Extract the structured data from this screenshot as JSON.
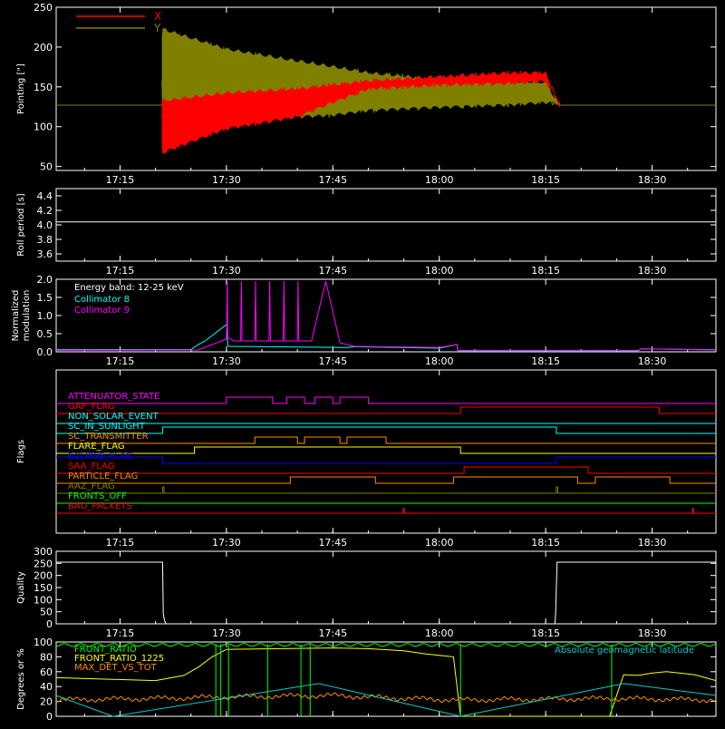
{
  "colors": {
    "background": "#000000",
    "axis": "#ffffff",
    "x_pointing": "#ff0000",
    "y_pointing": "#808000",
    "roll": "#ffffff",
    "collimator8": "#00ffff",
    "collimator9": "#ff00ff",
    "quality": "#ffffff",
    "geomag": "#00cccc",
    "front_ratio": "#00ff00",
    "front_ratio_1225": "#ffff00",
    "max_det": "#ff8c00"
  },
  "time_axis": {
    "ticks": [
      "17:15",
      "17:30",
      "17:45",
      "18:00",
      "18:15",
      "18:30"
    ],
    "tick_minutes": [
      1035,
      1050,
      1065,
      1080,
      1095,
      1110
    ],
    "range_minutes": [
      1026,
      1119
    ]
  },
  "chart_data": [
    {
      "id": "pointing",
      "type": "line",
      "ylabel": "Pointing [\"]",
      "ylim": [
        45,
        250
      ],
      "yticks": [
        50,
        100,
        150,
        200,
        250
      ],
      "series": [
        {
          "name": "X",
          "color": "#ff0000",
          "envelope": {
            "t": [
              1026,
              1040,
              1041,
              1050,
              1060,
              1065,
              1070,
              1080,
              1090,
              1095,
              1097,
              1119
            ],
            "lo": [
              127,
              127,
              65,
              95,
              110,
              128,
              145,
              150,
              152,
              155,
              127,
              127
            ],
            "hi": [
              127,
              127,
              135,
              145,
              150,
              155,
              160,
              165,
              170,
              170,
              127,
              127
            ]
          }
        },
        {
          "name": "Y",
          "color": "#808000",
          "envelope": {
            "t": [
              1026,
              1040,
              1041,
              1050,
              1060,
              1065,
              1070,
              1080,
              1090,
              1095,
              1097,
              1119
            ],
            "lo": [
              127,
              127,
              125,
              115,
              110,
              112,
              118,
              122,
              125,
              128,
              127,
              127
            ],
            "hi": [
              127,
              127,
              225,
              200,
              185,
              178,
              170,
              162,
              160,
              158,
              127,
              127
            ]
          }
        }
      ]
    },
    {
      "id": "roll",
      "type": "line",
      "ylabel": "Roll period [s]",
      "ylim": [
        3.5,
        4.5
      ],
      "yticks": [
        3.6,
        3.8,
        4.0,
        4.2,
        4.4
      ],
      "ytick_labels": [
        "3.6",
        "3.8",
        "4.0",
        "4.2",
        "4.4"
      ],
      "series": [
        {
          "name": "",
          "color": "#ffffff",
          "t": [
            1026,
            1119
          ],
          "values": [
            4.04,
            4.04
          ]
        }
      ]
    },
    {
      "id": "modulation",
      "type": "line",
      "ylabel": "Normalized modulation",
      "ylabel_lines": [
        "Normalized",
        "modulation"
      ],
      "ylim": [
        0,
        2.0
      ],
      "yticks": [
        0,
        0.5,
        1.0,
        1.5,
        2.0
      ],
      "ytick_labels": [
        "0.0",
        "0.5",
        "1.0",
        "1.5",
        "2.0"
      ],
      "legend": {
        "title": "Energy band: 12-25 keV",
        "items": [
          {
            "name": "Collimator 8",
            "color": "#00ffff"
          },
          {
            "name": "Collimator 9",
            "color": "#ff00ff"
          }
        ]
      },
      "series": [
        {
          "name": "Collimator 8",
          "color": "#00ffff",
          "t": [
            1026,
            1045,
            1046,
            1047,
            1048,
            1049,
            1050,
            1050.2,
            1067,
            1068,
            1080,
            1082.5,
            1082.6,
            1098,
            1108,
            1108.5,
            1119
          ],
          "values": [
            0.06,
            0.06,
            0.2,
            0.3,
            0.45,
            0.6,
            0.75,
            0.15,
            0.12,
            0.14,
            0.1,
            0.2,
            0.03,
            0.03,
            0.03,
            0.08,
            0.06
          ]
        },
        {
          "name": "Collimator 9",
          "color": "#ff00ff",
          "t": [
            1026,
            1046,
            1048,
            1050,
            1050.1,
            1050.2,
            1051,
            1052,
            1052.1,
            1052.2,
            1052.3,
            1054,
            1054.1,
            1054.2,
            1054.3,
            1056,
            1056.1,
            1056.2,
            1056.3,
            1058,
            1058.1,
            1058.2,
            1058.3,
            1060,
            1060.1,
            1060.2,
            1061,
            1062,
            1064,
            1066,
            1068,
            1080,
            1082.5,
            1082.6,
            1108,
            1108.5,
            1119
          ],
          "values": [
            0.04,
            0.05,
            0.2,
            0.35,
            1.95,
            0.4,
            0.3,
            0.3,
            1.95,
            0.3,
            0.3,
            0.3,
            1.95,
            0.3,
            0.3,
            0.3,
            1.95,
            0.3,
            0.3,
            0.3,
            1.95,
            0.3,
            0.3,
            0.3,
            1.95,
            0.3,
            0.3,
            0.3,
            1.95,
            0.25,
            0.15,
            0.12,
            0.2,
            0.04,
            0.04,
            0.08,
            0.05
          ]
        }
      ]
    },
    {
      "id": "flags",
      "type": "line",
      "ylabel": "Flags",
      "series": [
        {
          "name": "ATTENUATOR_STATE",
          "color": "#ff00ff",
          "steps": [
            [
              1050,
              1056.5
            ],
            [
              1058.5,
              1061
            ],
            [
              1062.5,
              1065
            ],
            [
              1066,
              1070
            ]
          ]
        },
        {
          "name": "GAP_FLAG",
          "color": "#ff0000",
          "steps": [
            [
              1083,
              1111
            ]
          ]
        },
        {
          "name": "NON_SOLAR_EVENT",
          "color": "#00ffff",
          "steps": []
        },
        {
          "name": "SC_IN_SUNLIGHT",
          "color": "#00ffff",
          "steps": [
            [
              1041,
              1096.5
            ]
          ]
        },
        {
          "name": "SC_TRANSMITTER",
          "color": "#ff8c00",
          "steps": [
            [
              1054,
              1060
            ],
            [
              1061,
              1066
            ],
            [
              1067,
              1072.5
            ]
          ]
        },
        {
          "name": "FLARE_FLAG",
          "color": "#ffff00",
          "steps": [
            [
              1045.5,
              1083
            ]
          ]
        },
        {
          "name": "ECLIPSE_FLAG",
          "color": "#0000ff",
          "inverted": true,
          "steps": [
            [
              1041,
              1096.5
            ]
          ]
        },
        {
          "name": "SAA_FLAG",
          "color": "#ff0000",
          "steps": [
            [
              1083.5,
              1101
            ]
          ]
        },
        {
          "name": "PARTICLE_FLAG",
          "color": "#ff8c00",
          "steps": [
            [
              1059,
              1071
            ],
            [
              1082,
              1099.5
            ],
            [
              1102,
              1112.5
            ]
          ]
        },
        {
          "name": "AAZ_FLAG",
          "color": "#808000",
          "steps": [
            [
              1041,
              1041.2
            ],
            [
              1096.5,
              1096.7
            ]
          ]
        },
        {
          "name": "FRONTS_OFF",
          "color": "#00ff00",
          "steps": []
        },
        {
          "name": "BAD_PACKETS",
          "color": "#ff0000",
          "spikes": [
            1075,
            1115.8
          ]
        }
      ]
    },
    {
      "id": "quality",
      "type": "line",
      "ylabel": "Quality",
      "ylim": [
        0,
        300
      ],
      "yticks": [
        0,
        50,
        100,
        150,
        200,
        250,
        300
      ],
      "series": [
        {
          "name": "",
          "color": "#ffffff",
          "t": [
            1026,
            1041,
            1041.1,
            1041.3,
            1041.5,
            1096.3,
            1096.4,
            1096.6,
            1119
          ],
          "values": [
            255,
            255,
            40,
            10,
            0,
            0,
            40,
            255,
            255
          ]
        }
      ]
    },
    {
      "id": "geometry",
      "type": "line",
      "ylabel": "Degrees or %",
      "ylim": [
        0,
        100
      ],
      "yticks": [
        0,
        20,
        40,
        60,
        80,
        100
      ],
      "annotation": "Absolute geomagnetic latitude",
      "series": [
        {
          "name": "FRONT_RATIO",
          "color": "#00ff00",
          "t": [
            1026,
            1119
          ],
          "values": [
            97,
            96
          ]
        },
        {
          "name": "FRONT_RATIO_1225",
          "color": "#ffff00",
          "t": [
            1026,
            1040,
            1044,
            1046,
            1048,
            1050,
            1065,
            1070,
            1075,
            1078,
            1080,
            1082,
            1083,
            1104,
            1106,
            1108,
            1110,
            1112,
            1114,
            1116,
            1119
          ],
          "values": [
            52,
            48,
            55,
            66,
            80,
            90,
            92,
            91,
            88,
            84,
            82,
            80,
            0,
            0,
            56,
            55,
            58,
            60,
            58,
            56,
            48
          ]
        },
        {
          "name": "MAX_DET_VS_TOT",
          "color": "#ff8c00",
          "t": [
            1026,
            1040,
            1050,
            1065,
            1075,
            1083,
            1104,
            1119
          ],
          "values": [
            22,
            24,
            26,
            28,
            24,
            22,
            24,
            22
          ]
        },
        {
          "name": "Absolute geomagnetic latitude",
          "color": "#00cccc",
          "t": [
            1026,
            1034,
            1063,
            1083,
            1106,
            1119
          ],
          "values": [
            28,
            0,
            44,
            0,
            44,
            28
          ]
        }
      ]
    }
  ]
}
